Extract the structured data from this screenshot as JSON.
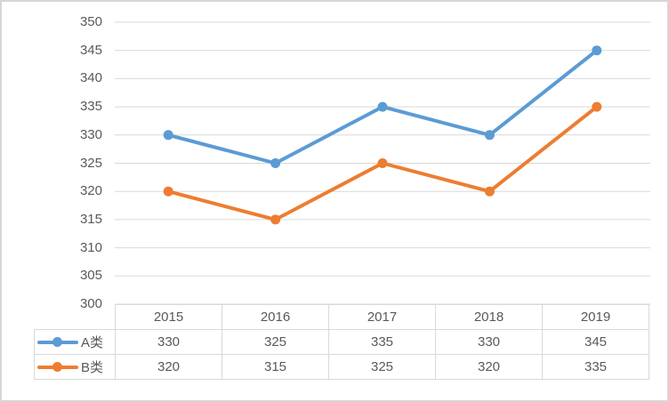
{
  "chart_data": {
    "type": "line",
    "title": "",
    "xlabel": "",
    "ylabel": "",
    "categories": [
      "2015",
      "2016",
      "2017",
      "2018",
      "2019"
    ],
    "series": [
      {
        "name": "A类",
        "values": [
          330,
          325,
          335,
          330,
          345
        ],
        "color": "#5B9BD5"
      },
      {
        "name": "B类",
        "values": [
          320,
          315,
          325,
          320,
          335
        ],
        "color": "#ED7D31"
      }
    ],
    "ylim": [
      300,
      350
    ],
    "ytick_step": 5,
    "yticks": [
      "350",
      "345",
      "340",
      "335",
      "330",
      "325",
      "320",
      "315",
      "310",
      "305",
      "300"
    ],
    "grid": true,
    "legend_position": "data-table-left",
    "marker": "circle",
    "data_table_shown": true
  },
  "colors": {
    "series_a": "#5B9BD5",
    "series_b": "#ED7D31",
    "gridline": "#d9d9d9",
    "table_border": "#d9d9d9",
    "text": "#595959",
    "frame_border": "#d6d6d6",
    "background": "#ffffff"
  }
}
